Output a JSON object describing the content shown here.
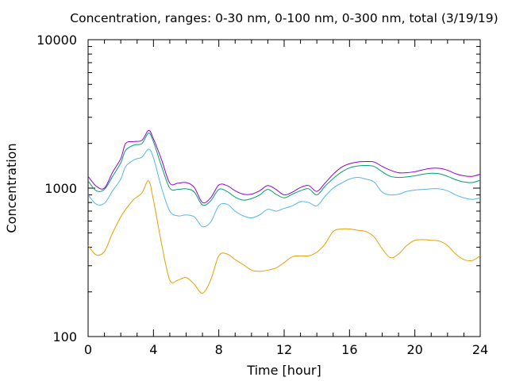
{
  "chart_data": {
    "type": "line",
    "title": "Concentration, ranges: 0-30 nm, 0-100 nm, 0-300 nm, total (3/19/19)",
    "xlabel": "Time [hour]",
    "ylabel": "Concentration",
    "xlim": [
      0,
      24
    ],
    "ylim": [
      100,
      10000
    ],
    "yscale": "log",
    "x_ticks": [
      0,
      4,
      8,
      12,
      16,
      20,
      24
    ],
    "x_tick_labels": [
      "0",
      "4",
      "8",
      "12",
      "16",
      "20",
      "24"
    ],
    "y_ticks": [
      100,
      1000,
      10000
    ],
    "y_tick_labels": [
      "100",
      "1000",
      "10000"
    ],
    "grid": false,
    "legend": "none",
    "x": [
      0,
      0.5,
      1,
      1.5,
      2,
      2.3,
      2.8,
      3.3,
      3.7,
      4,
      4.5,
      5,
      5.5,
      6,
      6.5,
      7,
      7.5,
      8,
      8.5,
      9,
      9.5,
      10,
      10.5,
      11,
      11.5,
      12,
      12.5,
      13,
      13.5,
      14,
      14.5,
      15,
      15.5,
      16,
      16.5,
      17,
      17.5,
      18,
      18.5,
      19,
      19.5,
      20,
      20.5,
      21,
      21.5,
      22,
      22.5,
      23,
      23.5,
      24
    ],
    "series": [
      {
        "color": "#e69f00",
        "values": [
          410,
          355,
          375,
          500,
          640,
          720,
          840,
          930,
          1120,
          830,
          420,
          240,
          240,
          250,
          225,
          196,
          240,
          350,
          360,
          330,
          305,
          280,
          275,
          280,
          290,
          315,
          345,
          350,
          350,
          370,
          420,
          510,
          530,
          530,
          520,
          510,
          470,
          390,
          340,
          360,
          410,
          445,
          450,
          445,
          440,
          410,
          360,
          330,
          325,
          350
        ]
      },
      {
        "color": "#56b4e9",
        "values": [
          900,
          780,
          790,
          960,
          1150,
          1400,
          1550,
          1620,
          1830,
          1600,
          1000,
          700,
          650,
          660,
          640,
          550,
          590,
          760,
          780,
          700,
          650,
          630,
          660,
          720,
          700,
          730,
          760,
          810,
          800,
          760,
          880,
          1000,
          1080,
          1150,
          1180,
          1150,
          1100,
          940,
          900,
          910,
          950,
          970,
          980,
          990,
          990,
          960,
          900,
          860,
          840,
          860
        ]
      },
      {
        "color": "#009e73",
        "values": [
          1120,
          960,
          980,
          1200,
          1480,
          1800,
          1950,
          2000,
          2350,
          2050,
          1400,
          1000,
          980,
          990,
          940,
          770,
          820,
          980,
          950,
          870,
          830,
          850,
          900,
          980,
          910,
          860,
          910,
          960,
          990,
          900,
          1030,
          1160,
          1280,
          1370,
          1410,
          1420,
          1400,
          1290,
          1200,
          1180,
          1190,
          1210,
          1240,
          1260,
          1250,
          1200,
          1140,
          1100,
          1090,
          1130
        ]
      },
      {
        "color": "#9400d3",
        "values": [
          1200,
          1030,
          1000,
          1280,
          1580,
          2000,
          2060,
          2100,
          2450,
          2150,
          1550,
          1080,
          1080,
          1090,
          1010,
          800,
          860,
          1050,
          1040,
          960,
          910,
          910,
          960,
          1040,
          980,
          900,
          940,
          1010,
          1040,
          950,
          1080,
          1240,
          1380,
          1460,
          1500,
          1510,
          1500,
          1400,
          1320,
          1270,
          1270,
          1290,
          1330,
          1360,
          1360,
          1320,
          1250,
          1210,
          1200,
          1240
        ]
      }
    ]
  }
}
